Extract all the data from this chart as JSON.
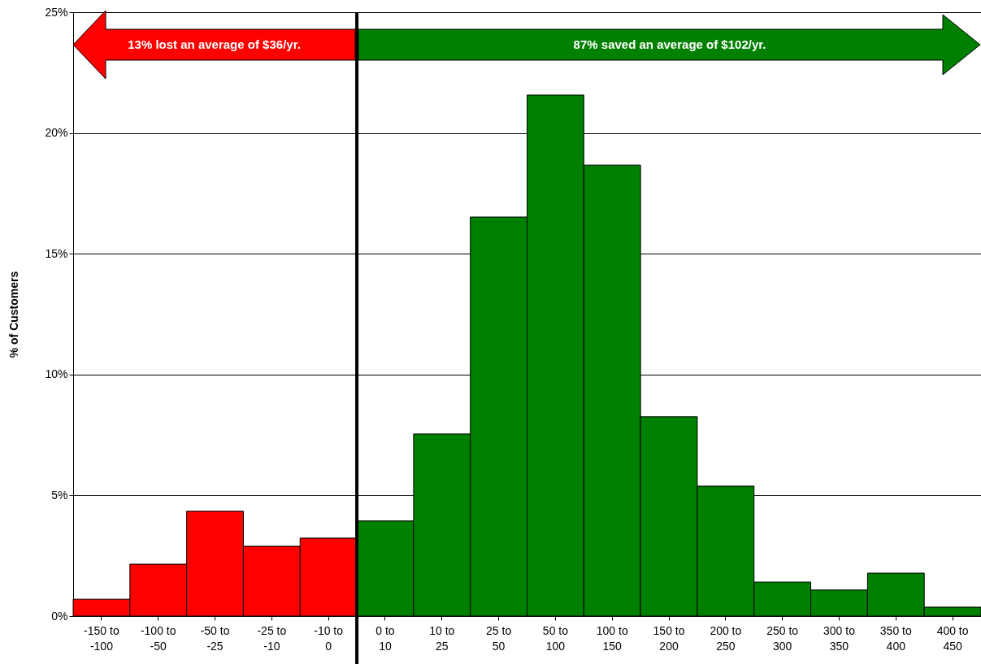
{
  "chart_data": {
    "type": "bar",
    "ylabel": "% of Customers",
    "categories": [
      "-150 to -100",
      "-100 to -50",
      "-50 to -25",
      "-25 to -10",
      "-10 to 0",
      "0 to 10",
      "10 to 25",
      "25 to 50",
      "50 to 100",
      "100 to 150",
      "150 to 200",
      "200 to 250",
      "250 to 300",
      "300 to 350",
      "350 to 400",
      "400 to 450"
    ],
    "values": [
      0.7,
      2.15,
      4.34,
      2.89,
      3.23,
      3.94,
      7.54,
      16.52,
      21.57,
      18.67,
      8.25,
      5.38,
      1.41,
      1.08,
      1.78,
      0.37
    ],
    "colors": [
      "#ff0000",
      "#ff0000",
      "#ff0000",
      "#ff0000",
      "#ff0000",
      "#008000",
      "#008000",
      "#008000",
      "#008000",
      "#008000",
      "#008000",
      "#008000",
      "#008000",
      "#008000",
      "#008000",
      "#008000"
    ],
    "ylim": [
      0,
      25
    ],
    "yticks": [
      {
        "value": 0,
        "label": "0%"
      },
      {
        "value": 5,
        "label": "5%"
      },
      {
        "value": 10,
        "label": "10%"
      },
      {
        "value": 15,
        "label": "15%"
      },
      {
        "value": 20,
        "label": "20%"
      },
      {
        "value": 25,
        "label": "25%"
      }
    ],
    "grid": "y",
    "ref_lines": [
      {
        "axis": "x",
        "value": "0 to 10",
        "color": "#000000"
      }
    ],
    "annotations": [
      "13% lost an average of $36/yr.",
      "87% saved an average of $102/yr."
    ]
  }
}
